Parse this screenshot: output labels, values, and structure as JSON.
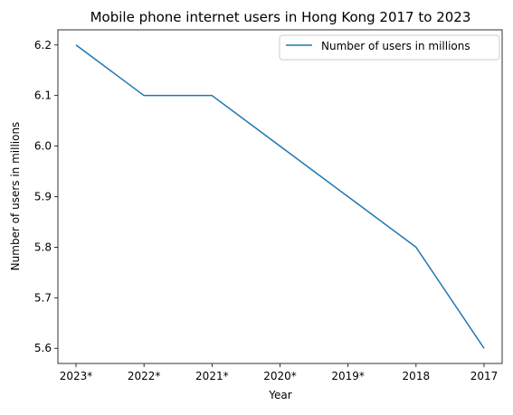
{
  "chart_data": {
    "type": "line",
    "title": "Mobile phone internet users in Hong Kong 2017 to 2023",
    "xlabel": "Year",
    "ylabel": "Number of users in millions",
    "categories": [
      "2023*",
      "2022*",
      "2021*",
      "2020*",
      "2019*",
      "2018",
      "2017"
    ],
    "series": [
      {
        "name": "Number of users in millions",
        "color": "#1f77b4",
        "values": [
          6.2,
          6.1,
          6.1,
          6.0,
          5.9,
          5.8,
          5.6
        ]
      }
    ],
    "ylim": [
      5.57,
      6.23
    ],
    "yticks": [
      5.6,
      5.7,
      5.8,
      5.9,
      6.0,
      6.1,
      6.2
    ],
    "grid": false,
    "legend_position": "top-right"
  }
}
